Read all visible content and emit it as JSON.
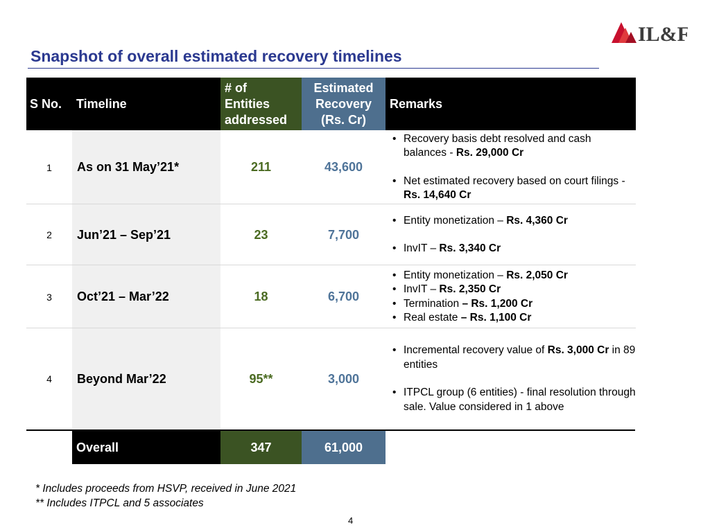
{
  "logo": {
    "text": "IL&FS",
    "brand_color": "#c8102e"
  },
  "page_title": "Snapshot of overall estimated recovery timelines",
  "table": {
    "headers": {
      "sno": "S No.",
      "timeline": "Timeline",
      "entities": [
        "# of",
        "Entities",
        "addressed"
      ],
      "recovery": [
        "Estimated",
        "Recovery",
        "(Rs. Cr)"
      ],
      "remarks": "Remarks"
    },
    "rows": [
      {
        "sno": "1",
        "timeline": "As on 31 May’21*",
        "entities": "211",
        "recovery": "43,600",
        "remarks": [
          {
            "text": "Recovery basis debt resolved and cash balances - ",
            "bold": "Rs. 29,000 Cr"
          },
          {
            "text": "Net estimated recovery based on court filings - ",
            "bold": "Rs. 14,640 Cr"
          }
        ]
      },
      {
        "sno": "2",
        "timeline": "Jun’21 – Sep’21",
        "entities": "23",
        "recovery": "7,700",
        "remarks": [
          {
            "text": "Entity monetization – ",
            "bold": "Rs. 4,360 Cr"
          },
          {
            "text": "InvIT – ",
            "bold": "Rs. 3,340 Cr"
          }
        ]
      },
      {
        "sno": "3",
        "timeline": "Oct’21 – Mar’22",
        "entities": "18",
        "recovery": "6,700",
        "remarks": [
          {
            "text": "Entity monetization – ",
            "bold": "Rs. 2,050 Cr"
          },
          {
            "text": "InvIT – ",
            "bold": "Rs. 2,350 Cr"
          },
          {
            "text": "Termination ",
            "bold": "– Rs. 1,200 Cr"
          },
          {
            "text": "Real estate ",
            "bold": "– Rs. 1,100 Cr"
          }
        ]
      },
      {
        "sno": "4",
        "timeline": "Beyond Mar’22",
        "entities": "95**",
        "recovery": "3,000",
        "remarks": [
          {
            "text": "Incremental recovery value of ",
            "bold": "Rs. 3,000 Cr",
            "tail": " in 89 entities"
          },
          {
            "text": "ITPCL group (6 entities) - final resolution through sale. Value considered in 1 above"
          }
        ]
      }
    ],
    "overall": {
      "label": "Overall",
      "entities": "347",
      "recovery": "61,000"
    }
  },
  "footnotes": [
    "* Includes proceeds from HSVP, received in June 2021",
    "** Includes ITPCL and 5 associates"
  ],
  "page_number": "4",
  "colors": {
    "title": "#2b3990",
    "header_black": "#000000",
    "header_green": "#3b5323",
    "header_steel": "#4e6f8e",
    "entities_text": "#4b6b22",
    "recovery_text": "#4f7499",
    "timeline_bg": "#f0f0f0"
  }
}
